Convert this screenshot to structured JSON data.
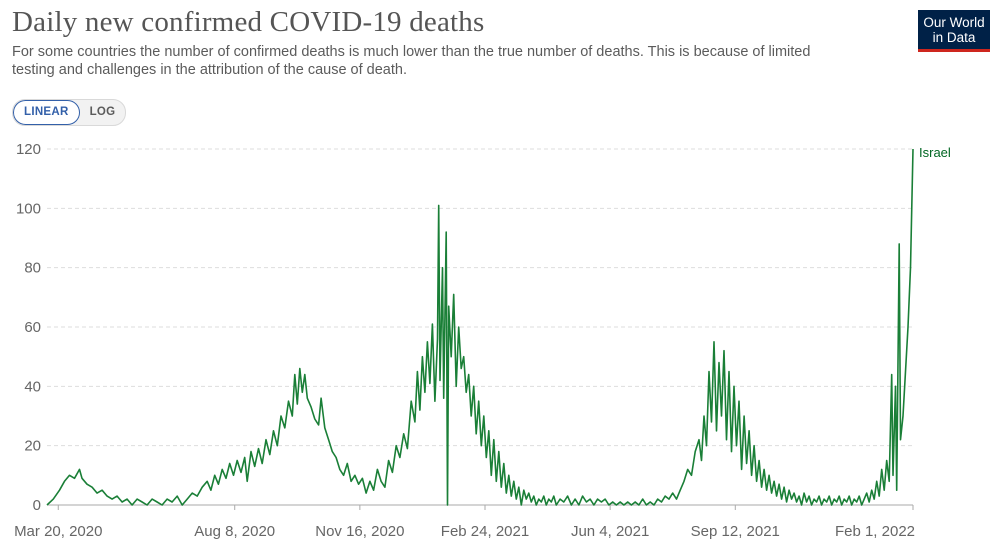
{
  "header": {
    "title": "Daily new confirmed COVID-19 deaths",
    "subtitle": "For some countries the number of confirmed deaths is much lower than the true number of deaths. This is because of limited testing and challenges in the attribution of the cause of death."
  },
  "logo": {
    "line1": "Our World",
    "line2": "in Data"
  },
  "scale_toggle": {
    "linear_label": "LINEAR",
    "log_label": "LOG",
    "selected": "LINEAR"
  },
  "colors": {
    "series": "#1a7f37",
    "grid": "#dddddd",
    "logo_bg": "#002147",
    "logo_accent": "#ce261e",
    "toggle_active": "#3360a9"
  },
  "chart_data": {
    "type": "line",
    "title": "Daily new confirmed COVID-19 deaths",
    "xlabel": "",
    "ylabel": "",
    "ylim": [
      0,
      120
    ],
    "y_ticks": [
      0,
      20,
      40,
      60,
      80,
      100,
      120
    ],
    "grid": true,
    "x_tick_labels": [
      "Mar 20, 2020",
      "Aug 8, 2020",
      "Nov 16, 2020",
      "Feb 24, 2021",
      "Jun 4, 2021",
      "Sep 12, 2021",
      "Feb 1, 2022"
    ],
    "x_tick_days": [
      9,
      150,
      250,
      350,
      450,
      550,
      692
    ],
    "x_range_days": [
      0,
      692
    ],
    "x_origin_date": "Mar 11, 2020",
    "series": [
      {
        "name": "Israel",
        "label": "Israel",
        "points": [
          [
            0,
            0
          ],
          [
            5,
            2
          ],
          [
            10,
            5
          ],
          [
            14,
            8
          ],
          [
            18,
            10
          ],
          [
            22,
            9
          ],
          [
            26,
            12
          ],
          [
            28,
            9
          ],
          [
            32,
            7
          ],
          [
            36,
            6
          ],
          [
            40,
            4
          ],
          [
            44,
            5
          ],
          [
            48,
            3
          ],
          [
            52,
            2
          ],
          [
            56,
            3
          ],
          [
            60,
            1
          ],
          [
            64,
            2
          ],
          [
            68,
            0
          ],
          [
            72,
            2
          ],
          [
            76,
            1
          ],
          [
            80,
            0
          ],
          [
            84,
            2
          ],
          [
            88,
            1
          ],
          [
            92,
            0
          ],
          [
            96,
            2
          ],
          [
            100,
            1
          ],
          [
            104,
            3
          ],
          [
            108,
            0
          ],
          [
            112,
            2
          ],
          [
            116,
            4
          ],
          [
            120,
            3
          ],
          [
            124,
            6
          ],
          [
            128,
            8
          ],
          [
            131,
            5
          ],
          [
            134,
            10
          ],
          [
            137,
            7
          ],
          [
            140,
            12
          ],
          [
            143,
            9
          ],
          [
            146,
            14
          ],
          [
            149,
            10
          ],
          [
            152,
            15
          ],
          [
            155,
            11
          ],
          [
            158,
            16
          ],
          [
            160,
            8
          ],
          [
            163,
            18
          ],
          [
            166,
            13
          ],
          [
            169,
            19
          ],
          [
            172,
            14
          ],
          [
            175,
            22
          ],
          [
            178,
            17
          ],
          [
            181,
            25
          ],
          [
            184,
            20
          ],
          [
            187,
            30
          ],
          [
            190,
            26
          ],
          [
            193,
            35
          ],
          [
            196,
            30
          ],
          [
            198,
            44
          ],
          [
            200,
            34
          ],
          [
            202,
            46
          ],
          [
            204,
            38
          ],
          [
            206,
            44
          ],
          [
            208,
            36
          ],
          [
            211,
            33
          ],
          [
            214,
            29
          ],
          [
            217,
            27
          ],
          [
            219,
            36
          ],
          [
            222,
            26
          ],
          [
            225,
            22
          ],
          [
            228,
            18
          ],
          [
            231,
            16
          ],
          [
            234,
            12
          ],
          [
            237,
            10
          ],
          [
            240,
            14
          ],
          [
            243,
            8
          ],
          [
            246,
            10
          ],
          [
            249,
            7
          ],
          [
            252,
            9
          ],
          [
            255,
            4
          ],
          [
            258,
            8
          ],
          [
            261,
            5
          ],
          [
            264,
            12
          ],
          [
            267,
            8
          ],
          [
            270,
            6
          ],
          [
            273,
            15
          ],
          [
            276,
            11
          ],
          [
            279,
            20
          ],
          [
            282,
            16
          ],
          [
            285,
            24
          ],
          [
            288,
            19
          ],
          [
            291,
            35
          ],
          [
            294,
            28
          ],
          [
            296,
            45
          ],
          [
            298,
            32
          ],
          [
            300,
            50
          ],
          [
            302,
            38
          ],
          [
            304,
            55
          ],
          [
            306,
            41
          ],
          [
            308,
            61
          ],
          [
            310,
            35
          ],
          [
            312,
            56
          ],
          [
            313,
            101
          ],
          [
            314,
            42
          ],
          [
            316,
            80
          ],
          [
            317,
            36
          ],
          [
            319,
            92
          ],
          [
            320,
            0
          ],
          [
            321,
            67
          ],
          [
            323,
            50
          ],
          [
            325,
            71
          ],
          [
            327,
            40
          ],
          [
            329,
            60
          ],
          [
            331,
            46
          ],
          [
            333,
            50
          ],
          [
            335,
            38
          ],
          [
            337,
            44
          ],
          [
            339,
            30
          ],
          [
            341,
            40
          ],
          [
            343,
            24
          ],
          [
            345,
            35
          ],
          [
            347,
            20
          ],
          [
            349,
            30
          ],
          [
            351,
            16
          ],
          [
            353,
            25
          ],
          [
            355,
            10
          ],
          [
            357,
            22
          ],
          [
            359,
            8
          ],
          [
            361,
            18
          ],
          [
            363,
            6
          ],
          [
            365,
            14
          ],
          [
            367,
            4
          ],
          [
            369,
            10
          ],
          [
            371,
            3
          ],
          [
            373,
            8
          ],
          [
            375,
            2
          ],
          [
            377,
            6
          ],
          [
            379,
            0
          ],
          [
            381,
            5
          ],
          [
            383,
            2
          ],
          [
            385,
            4
          ],
          [
            387,
            1
          ],
          [
            389,
            3
          ],
          [
            391,
            0
          ],
          [
            393,
            2
          ],
          [
            395,
            1
          ],
          [
            397,
            3
          ],
          [
            399,
            0
          ],
          [
            401,
            2
          ],
          [
            403,
            1
          ],
          [
            405,
            3
          ],
          [
            407,
            0
          ],
          [
            410,
            2
          ],
          [
            413,
            1
          ],
          [
            416,
            3
          ],
          [
            419,
            0
          ],
          [
            422,
            2
          ],
          [
            425,
            0
          ],
          [
            428,
            3
          ],
          [
            431,
            1
          ],
          [
            434,
            2
          ],
          [
            437,
            0
          ],
          [
            440,
            2
          ],
          [
            443,
            1
          ],
          [
            446,
            2
          ],
          [
            449,
            0
          ],
          [
            452,
            1
          ],
          [
            455,
            0
          ],
          [
            458,
            1
          ],
          [
            461,
            0
          ],
          [
            464,
            1
          ],
          [
            467,
            0
          ],
          [
            470,
            1
          ],
          [
            473,
            0
          ],
          [
            476,
            2
          ],
          [
            479,
            0
          ],
          [
            482,
            1
          ],
          [
            485,
            0
          ],
          [
            488,
            2
          ],
          [
            491,
            1
          ],
          [
            494,
            3
          ],
          [
            497,
            2
          ],
          [
            500,
            4
          ],
          [
            503,
            2
          ],
          [
            506,
            5
          ],
          [
            509,
            8
          ],
          [
            512,
            12
          ],
          [
            515,
            10
          ],
          [
            518,
            18
          ],
          [
            521,
            22
          ],
          [
            523,
            15
          ],
          [
            525,
            30
          ],
          [
            527,
            20
          ],
          [
            529,
            45
          ],
          [
            531,
            28
          ],
          [
            533,
            55
          ],
          [
            535,
            25
          ],
          [
            537,
            48
          ],
          [
            539,
            30
          ],
          [
            541,
            52
          ],
          [
            543,
            22
          ],
          [
            545,
            45
          ],
          [
            547,
            18
          ],
          [
            549,
            40
          ],
          [
            551,
            20
          ],
          [
            553,
            35
          ],
          [
            555,
            12
          ],
          [
            557,
            30
          ],
          [
            559,
            14
          ],
          [
            561,
            25
          ],
          [
            563,
            10
          ],
          [
            565,
            20
          ],
          [
            567,
            8
          ],
          [
            569,
            15
          ],
          [
            571,
            6
          ],
          [
            573,
            12
          ],
          [
            575,
            5
          ],
          [
            577,
            10
          ],
          [
            579,
            4
          ],
          [
            581,
            8
          ],
          [
            583,
            3
          ],
          [
            585,
            7
          ],
          [
            587,
            2
          ],
          [
            589,
            6
          ],
          [
            591,
            1
          ],
          [
            593,
            5
          ],
          [
            595,
            2
          ],
          [
            597,
            4
          ],
          [
            599,
            1
          ],
          [
            601,
            3
          ],
          [
            603,
            0
          ],
          [
            605,
            4
          ],
          [
            607,
            1
          ],
          [
            609,
            3
          ],
          [
            611,
            0
          ],
          [
            613,
            2
          ],
          [
            615,
            1
          ],
          [
            617,
            3
          ],
          [
            619,
            0
          ],
          [
            621,
            2
          ],
          [
            623,
            1
          ],
          [
            625,
            3
          ],
          [
            627,
            0
          ],
          [
            629,
            2
          ],
          [
            631,
            1
          ],
          [
            633,
            3
          ],
          [
            635,
            0
          ],
          [
            637,
            2
          ],
          [
            639,
            1
          ],
          [
            641,
            3
          ],
          [
            643,
            0
          ],
          [
            645,
            2
          ],
          [
            647,
            1
          ],
          [
            649,
            3
          ],
          [
            651,
            0
          ],
          [
            653,
            2
          ],
          [
            655,
            4
          ],
          [
            657,
            1
          ],
          [
            659,
            5
          ],
          [
            661,
            2
          ],
          [
            663,
            8
          ],
          [
            665,
            3
          ],
          [
            667,
            12
          ],
          [
            669,
            5
          ],
          [
            671,
            15
          ],
          [
            673,
            8
          ],
          [
            675,
            44
          ],
          [
            676,
            10
          ],
          [
            678,
            40
          ],
          [
            679,
            5
          ],
          [
            681,
            88
          ],
          [
            682,
            22
          ],
          [
            684,
            30
          ],
          [
            686,
            45
          ],
          [
            688,
            60
          ],
          [
            690,
            80
          ],
          [
            692,
            120
          ]
        ]
      }
    ]
  }
}
